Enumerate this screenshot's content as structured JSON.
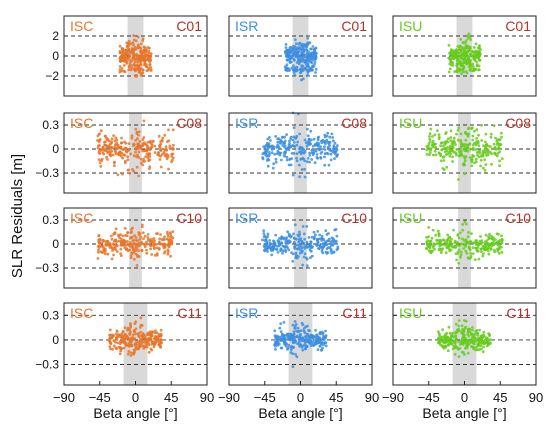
{
  "chart_data": {
    "type": "scatter",
    "ylabel": "SLR Residuals [m]",
    "xlabel": "Beta angle [°]",
    "xlim": [
      -90,
      90
    ],
    "xticks": [
      -90,
      -45,
      0,
      45,
      90
    ],
    "grid": "dashed horizontal lines",
    "series_colors": {
      "ISC": "#e8762a",
      "ISR": "#3d8fe0",
      "ISU": "#66cc1c"
    },
    "sat_label_color": "#b3322a",
    "shade_color": "#d9d9d9",
    "columns": [
      "ISC",
      "ISR",
      "ISU"
    ],
    "rows": [
      {
        "satellite": "C01",
        "ylim": [
          -4,
          4
        ],
        "yticks": [
          2,
          0,
          -2
        ],
        "ytick_labels": [
          "2",
          "0",
          "−2"
        ],
        "gridlines": [
          2,
          0,
          -2
        ],
        "shade": [
          -10,
          10
        ],
        "cluster_x": [
          -20,
          20
        ],
        "center": 0,
        "spread": 0.5,
        "outlier_level": -1.4
      },
      {
        "satellite": "C08",
        "ylim": [
          -0.55,
          0.45
        ],
        "yticks": [
          0.3,
          0,
          -0.3
        ],
        "ytick_labels": [
          "0.3",
          "0",
          "−0.3"
        ],
        "gridlines": [
          0.3,
          0,
          -0.3
        ],
        "shade": [
          -8,
          8
        ],
        "cluster_x": [
          -48,
          48
        ],
        "center": 0,
        "spread": 0.1,
        "outlier_level": null
      },
      {
        "satellite": "C10",
        "ylim": [
          -0.55,
          0.45
        ],
        "yticks": [
          0.3,
          0,
          -0.3
        ],
        "ytick_labels": [
          "0.3",
          "0",
          "−0.3"
        ],
        "gridlines": [
          0.3,
          0,
          -0.3
        ],
        "shade": [
          -8,
          8
        ],
        "cluster_x": [
          -48,
          48
        ],
        "center": 0,
        "spread": 0.07,
        "outlier_level": null
      },
      {
        "satellite": "C11",
        "ylim": [
          -0.55,
          0.45
        ],
        "yticks": [
          0.3,
          0,
          -0.3
        ],
        "ytick_labels": [
          "0.3",
          "0",
          "−0.3"
        ],
        "gridlines": [
          0.3,
          0,
          -0.3
        ],
        "shade": [
          -15,
          15
        ],
        "cluster_x": [
          -33,
          33
        ],
        "center": 0,
        "spread": 0.06,
        "outlier_level": null
      }
    ]
  }
}
